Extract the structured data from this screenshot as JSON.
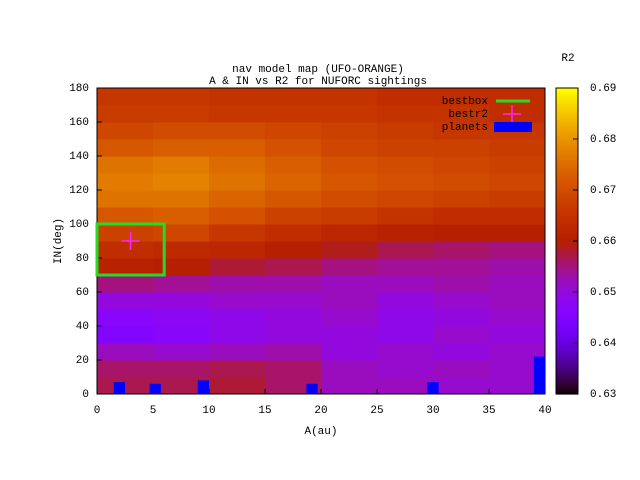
{
  "chart_data": {
    "type": "heatmap",
    "title": "nav model map (UFO-ORANGE)",
    "subtitle": "A & IN vs R2 for NUFORC sightings",
    "xlabel": "A(au)",
    "ylabel": "IN(deg)",
    "xlim": [
      0,
      40
    ],
    "ylim": [
      0,
      180
    ],
    "xticks": [
      0,
      5,
      10,
      15,
      20,
      25,
      30,
      35,
      40
    ],
    "yticks": [
      0,
      20,
      40,
      60,
      80,
      100,
      120,
      140,
      160,
      180
    ],
    "x_bins": [
      0,
      5,
      10,
      15,
      20,
      25,
      30,
      35,
      40
    ],
    "y_bins": [
      0,
      10,
      20,
      30,
      40,
      50,
      60,
      70,
      80,
      90,
      100,
      110,
      120,
      130,
      140,
      150,
      160,
      170,
      180
    ],
    "z": [
      [
        0.657,
        0.657,
        0.658,
        0.656,
        0.652,
        0.652,
        0.651,
        0.651
      ],
      [
        0.656,
        0.656,
        0.657,
        0.656,
        0.652,
        0.651,
        0.652,
        0.651
      ],
      [
        0.652,
        0.651,
        0.652,
        0.653,
        0.65,
        0.651,
        0.65,
        0.651
      ],
      [
        0.646,
        0.647,
        0.649,
        0.65,
        0.65,
        0.649,
        0.651,
        0.65
      ],
      [
        0.647,
        0.648,
        0.649,
        0.65,
        0.651,
        0.649,
        0.65,
        0.651
      ],
      [
        0.65,
        0.65,
        0.651,
        0.651,
        0.652,
        0.65,
        0.651,
        0.652
      ],
      [
        0.655,
        0.654,
        0.653,
        0.653,
        0.652,
        0.652,
        0.653,
        0.652
      ],
      [
        0.661,
        0.66,
        0.658,
        0.657,
        0.655,
        0.654,
        0.654,
        0.653
      ],
      [
        0.664,
        0.663,
        0.662,
        0.66,
        0.659,
        0.657,
        0.656,
        0.655
      ],
      [
        0.668,
        0.669,
        0.666,
        0.664,
        0.662,
        0.661,
        0.66,
        0.66
      ],
      [
        0.672,
        0.673,
        0.671,
        0.668,
        0.667,
        0.665,
        0.664,
        0.664
      ],
      [
        0.676,
        0.676,
        0.674,
        0.672,
        0.67,
        0.669,
        0.668,
        0.667
      ],
      [
        0.677,
        0.678,
        0.676,
        0.674,
        0.672,
        0.671,
        0.67,
        0.669
      ],
      [
        0.676,
        0.677,
        0.675,
        0.673,
        0.671,
        0.67,
        0.669,
        0.668
      ],
      [
        0.672,
        0.673,
        0.673,
        0.671,
        0.669,
        0.668,
        0.668,
        0.667
      ],
      [
        0.669,
        0.67,
        0.67,
        0.669,
        0.668,
        0.667,
        0.666,
        0.666
      ],
      [
        0.667,
        0.667,
        0.666,
        0.666,
        0.666,
        0.665,
        0.665,
        0.664
      ],
      [
        0.666,
        0.666,
        0.665,
        0.665,
        0.665,
        0.664,
        0.664,
        0.664
      ]
    ],
    "colorbar": {
      "label": "R2",
      "lim": [
        0.63,
        0.69
      ],
      "ticks": [
        0.63,
        0.64,
        0.65,
        0.66,
        0.67,
        0.68,
        0.69
      ]
    },
    "series": [
      {
        "name": "bestbox",
        "type": "box",
        "color": "#22dd22",
        "x": [
          0,
          6
        ],
        "values": [
          70,
          100
        ]
      },
      {
        "name": "bestr2",
        "type": "point",
        "color": "#ff22ff",
        "x": [
          3
        ],
        "values": [
          90
        ]
      },
      {
        "name": "planets",
        "type": "bar",
        "color": "#0000ff",
        "x": [
          2,
          5.2,
          9.5,
          19.2,
          30,
          39.5
        ],
        "values": [
          7,
          6,
          8,
          6,
          7,
          22
        ]
      }
    ]
  }
}
